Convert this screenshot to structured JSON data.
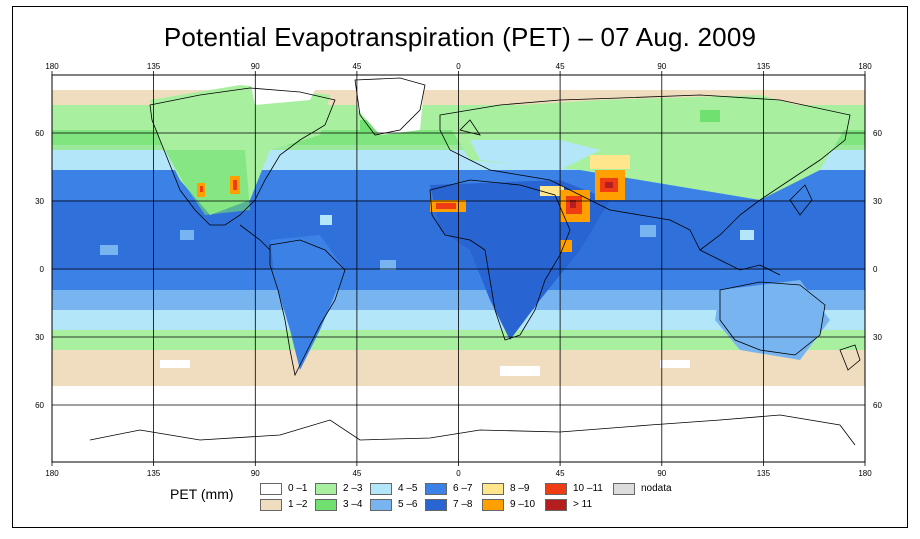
{
  "title": "Potential Evapotranspiration (PET) – 07 Aug. 2009",
  "axes": {
    "lon_labels": [
      "180",
      "135",
      "90",
      "45",
      "0",
      "45",
      "90",
      "135",
      "180"
    ],
    "lat_labels": [
      "60",
      "30",
      "0",
      "30",
      "60"
    ]
  },
  "legend": {
    "title": "PET (mm)",
    "classes": [
      {
        "label": "0 –1",
        "color": "#ffffff"
      },
      {
        "label": "1 –2",
        "color": "#f0dcbe"
      },
      {
        "label": "2 –3",
        "color": "#a8f0a0"
      },
      {
        "label": "3 –4",
        "color": "#70e070"
      },
      {
        "label": "4 –5",
        "color": "#b4e6fa"
      },
      {
        "label": "5 –6",
        "color": "#78b4f0"
      },
      {
        "label": "6 –7",
        "color": "#3c82e6"
      },
      {
        "label": "7 –8",
        "color": "#2864d2"
      },
      {
        "label": "8 –9",
        "color": "#ffe68c"
      },
      {
        "label": "9 –10",
        "color": "#ffa000"
      },
      {
        "label": "10 –11",
        "color": "#f03c14"
      },
      {
        "label": "> 11",
        "color": "#b41e1e"
      },
      {
        "label": "nodata",
        "color": "#dcdcdc"
      }
    ]
  }
}
